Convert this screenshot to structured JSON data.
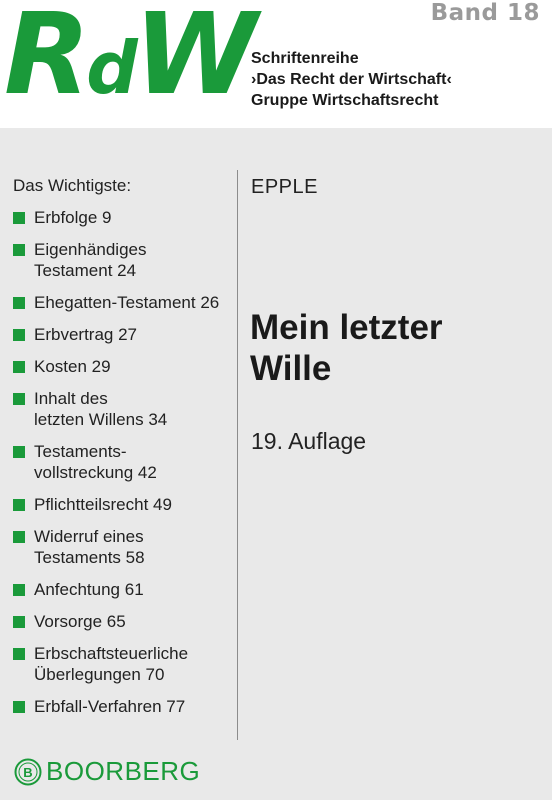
{
  "header": {
    "logo_big_r": "R",
    "logo_small_d": "d",
    "logo_big_w": "W",
    "band": "Band 18",
    "series_lines": [
      "Schriftenreihe",
      "›Das Recht der Wirtschaft‹",
      "Gruppe Wirtschaftsrecht"
    ]
  },
  "toc": {
    "title": "Das Wichtigste:",
    "items": [
      {
        "lines": [
          "Erbfolge  9"
        ]
      },
      {
        "lines": [
          "Eigenhändiges",
          "Testament  24"
        ]
      },
      {
        "lines": [
          "Ehegatten-Testament  26"
        ]
      },
      {
        "lines": [
          "Erbvertrag  27"
        ]
      },
      {
        "lines": [
          "Kosten  29"
        ]
      },
      {
        "lines": [
          "Inhalt des",
          "letzten Willens  34"
        ]
      },
      {
        "lines": [
          "Testaments-",
          "vollstreckung  42"
        ]
      },
      {
        "lines": [
          "Pflichtteilsrecht  49"
        ]
      },
      {
        "lines": [
          "Widerruf eines",
          "Testaments  58"
        ]
      },
      {
        "lines": [
          "Anfechtung  61"
        ]
      },
      {
        "lines": [
          "Vorsorge  65"
        ]
      },
      {
        "lines": [
          "Erbschaftsteuerliche",
          "Überlegungen  70"
        ]
      },
      {
        "lines": [
          "Erbfall-Verfahren  77"
        ]
      }
    ]
  },
  "book": {
    "author": "EPPLE",
    "title_lines": [
      "Mein letzter",
      "Wille"
    ],
    "edition": "19. Auflage"
  },
  "publisher": {
    "logo_letter": "B",
    "name": "BOORBERG"
  },
  "colors": {
    "accent_green": "#1a9a3a",
    "band_grey": "#9a9a9a",
    "panel_grey": "#e9e9e9"
  }
}
